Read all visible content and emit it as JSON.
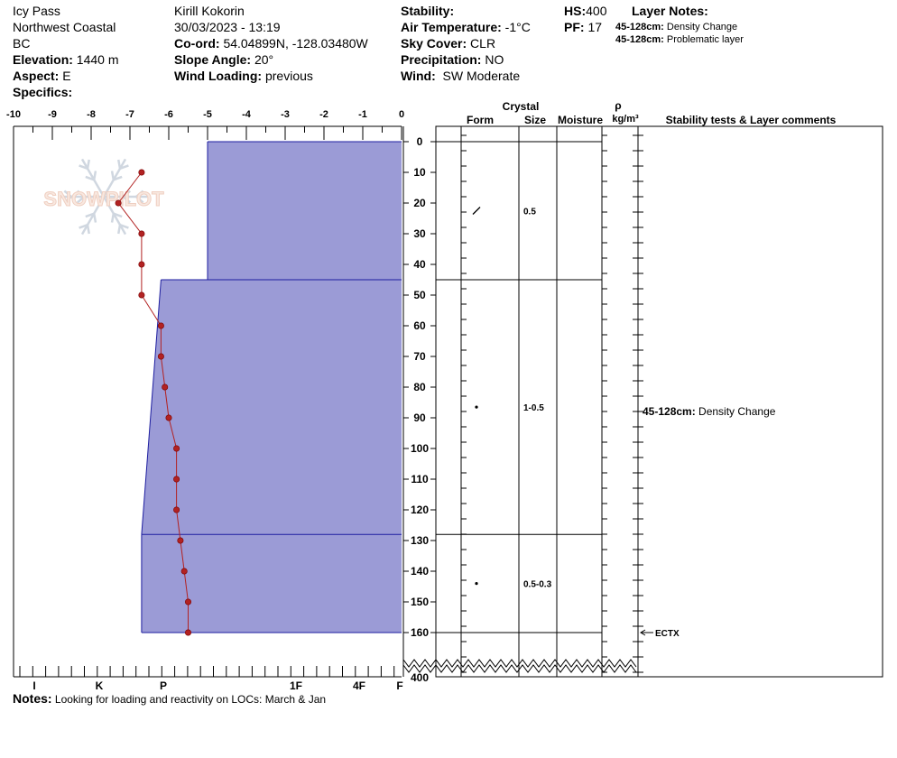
{
  "header": {
    "location_name": "Icy Pass",
    "region": "Northwest Coastal",
    "province": "BC",
    "elevation_label": "Elevation:",
    "elevation": "1440 m",
    "aspect_label": "Aspect:",
    "aspect": "E",
    "specifics_label": "Specifics:",
    "observer": "Kirill Kokorin",
    "datetime": "30/03/2023 - 13:19",
    "coord_label": "Co-ord:",
    "coord": "54.04899N, -128.03480W",
    "slope_label": "Slope Angle:",
    "slope": "20°",
    "wind_loading_label": "Wind Loading:",
    "wind_loading": "previous",
    "stability_label": "Stability:",
    "air_temp_label": "Air Temperature:",
    "air_temp": "-1°C",
    "sky_label": "Sky Cover:",
    "sky": "CLR",
    "precip_label": "Precipitation:",
    "precip": "NO",
    "wind_label": "Wind:",
    "wind": "SW Moderate",
    "hs_label": "HS:",
    "hs": "400",
    "pf_label": "PF:",
    "pf": "17",
    "layer_notes_title": "Layer Notes:",
    "layer_notes": [
      {
        "range": "45-128cm:",
        "text": "Density Change"
      },
      {
        "range": "45-128cm:",
        "text": "Problematic layer"
      }
    ]
  },
  "notes": {
    "label": "Notes:",
    "text": "Looking for loading and reactivity on LOCs: March & Jan"
  },
  "watermark": "SNOWPILOT",
  "columns": {
    "crystal": "Crystal",
    "form": "Form",
    "size": "Size",
    "moisture": "Moisture",
    "rho": "ρ",
    "density_unit": "kg/m³",
    "stability": "Stability tests & Layer comments"
  },
  "chart_data": {
    "type": "snow_profile",
    "temperature_axis": {
      "ticks": [
        "-10",
        "-9",
        "-8",
        "-7",
        "-6",
        "-5",
        "-4",
        "-3",
        "-2",
        "-1",
        "0"
      ],
      "range": [
        -10,
        0
      ]
    },
    "hardness_axis": {
      "labels": [
        "I",
        "K",
        "P",
        "F",
        "1F",
        "4F",
        "F"
      ]
    },
    "depth_axis": {
      "ticks": [
        0,
        10,
        20,
        30,
        40,
        50,
        60,
        70,
        80,
        90,
        100,
        110,
        120,
        130,
        140,
        150,
        160
      ],
      "bottom_label": "400"
    },
    "temperature_profile": [
      {
        "depth": 10,
        "temp": -6.7
      },
      {
        "depth": 20,
        "temp": -7.3
      },
      {
        "depth": 30,
        "temp": -6.7
      },
      {
        "depth": 40,
        "temp": -6.7
      },
      {
        "depth": 50,
        "temp": -6.7
      },
      {
        "depth": 60,
        "temp": -6.2
      },
      {
        "depth": 70,
        "temp": -6.2
      },
      {
        "depth": 80,
        "temp": -6.1
      },
      {
        "depth": 90,
        "temp": -6.0
      },
      {
        "depth": 100,
        "temp": -5.8
      },
      {
        "depth": 110,
        "temp": -5.8
      },
      {
        "depth": 120,
        "temp": -5.8
      },
      {
        "depth": 130,
        "temp": -5.7
      },
      {
        "depth": 140,
        "temp": -5.6
      },
      {
        "depth": 150,
        "temp": -5.5
      },
      {
        "depth": 160,
        "temp": -5.5
      }
    ],
    "layers": [
      {
        "top": 0,
        "bottom": 45,
        "hardness_top": -5.0,
        "hardness_bottom": -5.0,
        "form": "/",
        "size": "0.5"
      },
      {
        "top": 45,
        "bottom": 128,
        "hardness_top": -6.2,
        "hardness_bottom": -6.7,
        "form": "•",
        "size": "1-0.5"
      },
      {
        "top": 128,
        "bottom": 160,
        "hardness_top": -6.7,
        "hardness_bottom": -6.7,
        "form": "•",
        "size": "0.5-0.3"
      }
    ],
    "comments": [
      {
        "depth": 88,
        "range": "45-128cm:",
        "text": "Density Change"
      }
    ],
    "stability_tests": [
      {
        "depth": 160,
        "label": "ECTX"
      }
    ],
    "colors": {
      "layer_fill": "#9b9bd6",
      "layer_stroke": "#1e1ea0",
      "temp_line": "#b22222"
    }
  }
}
